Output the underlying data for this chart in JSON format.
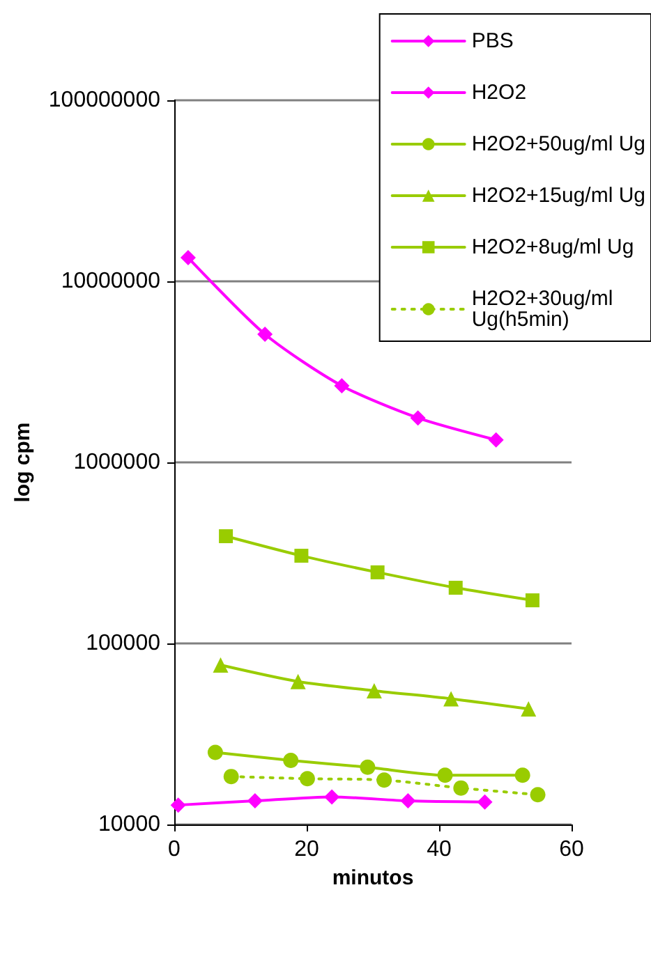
{
  "chart_data": {
    "type": "line",
    "xlabel": "minutos",
    "ylabel": "log cpm",
    "log": "y",
    "grid": "y",
    "legend": "top right",
    "xlim": [
      0,
      60
    ],
    "xticks": [
      0,
      20,
      40,
      60
    ],
    "ylim": [
      10000,
      100000000
    ],
    "yticks": [
      10000,
      100000,
      1000000,
      10000000,
      100000000
    ],
    "series": [
      {
        "name": "PBS",
        "color": "#ff00ff",
        "marker": "diamond",
        "line_style": "solid",
        "x": [
          0.6,
          12.2,
          23.8,
          35.3,
          46.9
        ],
        "values": [
          12800,
          13500,
          14200,
          13500,
          13300
        ]
      },
      {
        "name": "H2O2",
        "color": "#ff00ff",
        "marker": "diamond",
        "line_style": "solid",
        "x": [
          2.1,
          13.7,
          25.3,
          36.8,
          48.6
        ],
        "values": [
          13500000,
          5100000,
          2650000,
          1760000,
          1330000
        ]
      },
      {
        "name": "H2O2+50ug/ml Ug",
        "color": "#99cc00",
        "marker": "circle",
        "line_style": "solid",
        "x": [
          6.2,
          17.6,
          29.2,
          40.9,
          52.6
        ],
        "values": [
          25000,
          22600,
          20700,
          18700,
          18700
        ]
      },
      {
        "name": "H2O2+15ug/ml Ug",
        "color": "#99cc00",
        "marker": "triangle",
        "line_style": "solid",
        "x": [
          7.0,
          18.7,
          30.2,
          41.8,
          53.5
        ],
        "values": [
          76000,
          61600,
          54800,
          49500,
          43500
        ]
      },
      {
        "name": "H2O2+8ug/ml Ug",
        "color": "#99cc00",
        "marker": "square",
        "line_style": "solid",
        "x": [
          7.8,
          19.2,
          30.7,
          42.5,
          54.1
        ],
        "values": [
          391000,
          305000,
          247000,
          203000,
          173000
        ]
      },
      {
        "name": "H2O2+30ug/ml Ug(h5min)",
        "color": "#99cc00",
        "marker": "circle",
        "line_style": "dotted",
        "x": [
          8.6,
          20.1,
          31.7,
          43.3,
          54.9
        ],
        "values": [
          18400,
          17900,
          17600,
          15900,
          14600
        ]
      }
    ]
  }
}
